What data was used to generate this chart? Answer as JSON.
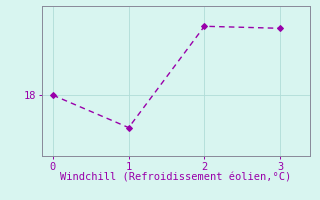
{
  "x": [
    0,
    1,
    2,
    3
  ],
  "y": [
    18,
    17.2,
    19.7,
    19.65
  ],
  "line_color": "#9900aa",
  "marker_color": "#9900aa",
  "background_color": "#d8f5f0",
  "grid_color": "#b0ddd8",
  "axis_color": "#888899",
  "xlabel": "Windchill (Refroidissement éolien,°C)",
  "xlabel_color": "#9900aa",
  "ytick_labels": [
    "18"
  ],
  "ytick_values": [
    18
  ],
  "xlim": [
    -0.15,
    3.4
  ],
  "ylim": [
    16.5,
    20.2
  ],
  "xticks": [
    0,
    1,
    2,
    3
  ],
  "tick_color": "#9900aa",
  "xlabel_fontsize": 7.5,
  "tick_fontsize": 7.5,
  "line_width": 1.0,
  "marker_size": 3,
  "marker_style": "D"
}
